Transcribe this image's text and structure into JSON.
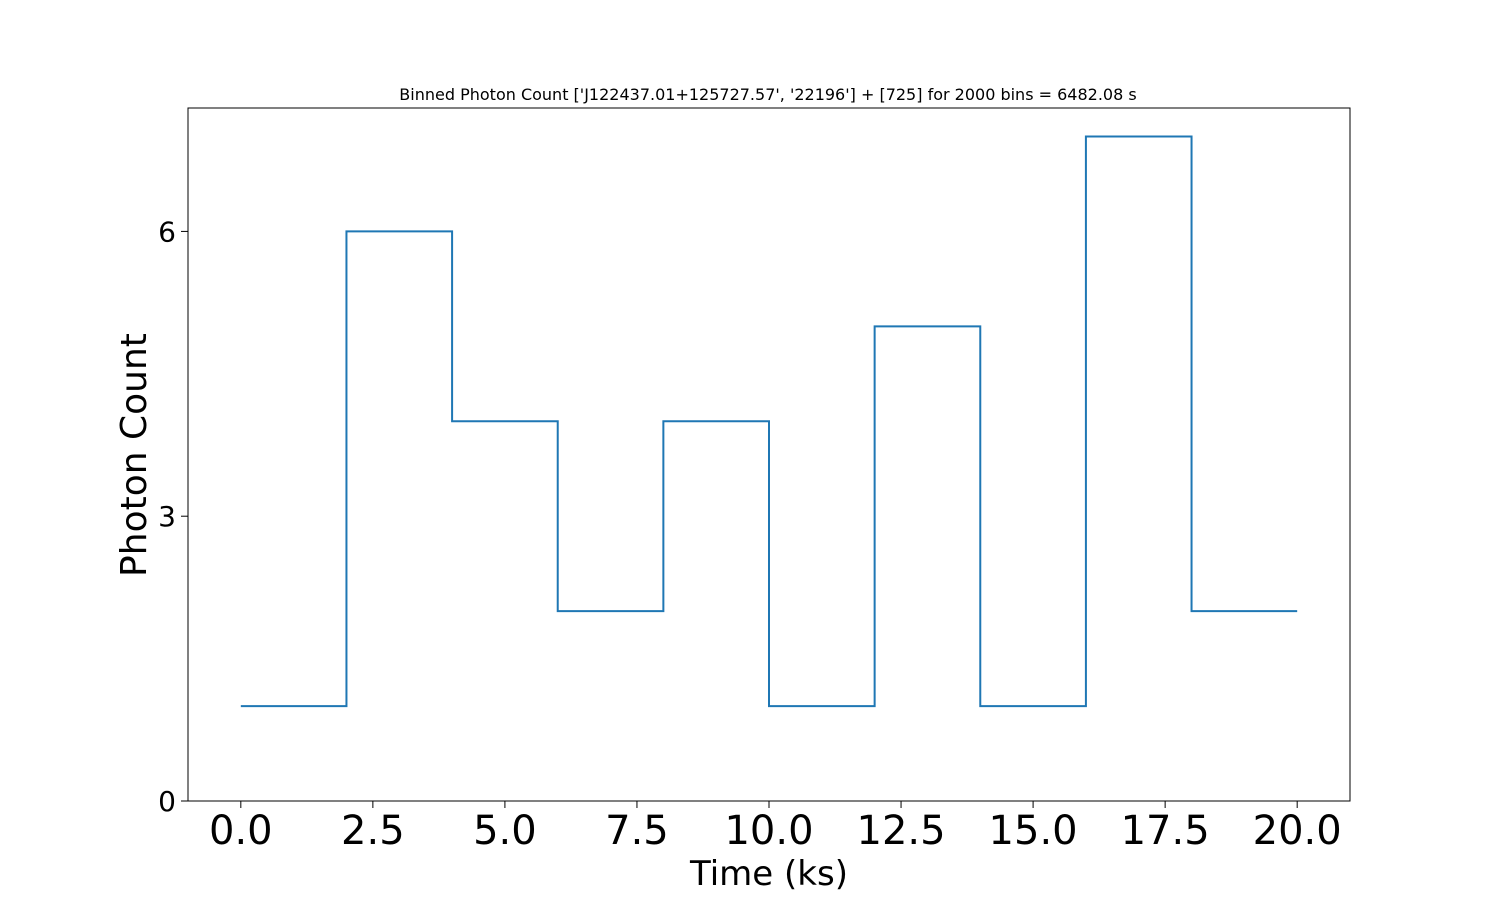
{
  "chart_data": {
    "type": "line",
    "drawstyle": "steps-post",
    "title": "Binned Photon Count ['J122437.01+125727.57', '22196'] + [725] for 2000 bins = 6482.08 s",
    "xlabel": "Time (ks)",
    "ylabel": "Photon Count",
    "xlim": [
      -1.0,
      21.0
    ],
    "ylim": [
      0,
      7.3
    ],
    "xticks": [
      0.0,
      2.5,
      5.0,
      7.5,
      10.0,
      12.5,
      15.0,
      17.5,
      20.0
    ],
    "xtick_labels": [
      "0.0",
      "2.5",
      "5.0",
      "7.5",
      "10.0",
      "12.5",
      "15.0",
      "17.5",
      "20.0"
    ],
    "yticks": [
      0,
      3,
      6
    ],
    "ytick_labels": [
      "0",
      "3",
      "6"
    ],
    "grid": false,
    "series": [
      {
        "color": "#1f77b4",
        "x": [
          0,
          2,
          4,
          6,
          8,
          10,
          12,
          14,
          16,
          18,
          20
        ],
        "y": [
          1,
          6,
          4,
          2,
          4,
          1,
          5,
          1,
          7,
          2,
          2
        ]
      }
    ]
  }
}
